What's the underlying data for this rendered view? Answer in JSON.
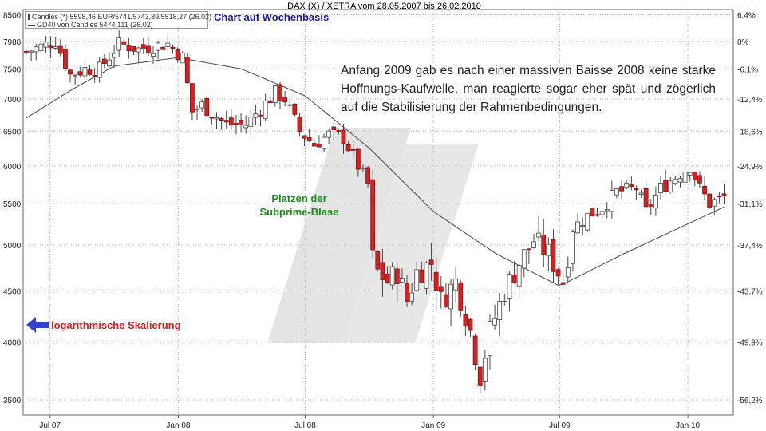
{
  "title": ".DAX (X) / XETRA vom 28.05.2007 bis 26.02.2010",
  "legend": {
    "candles": "Candles (*) 5598,46 EUR/5741/5743,89/5518,27 (26.02)",
    "gd40": "GD40 von Candles 5474,111 (26.02)"
  },
  "note": "Chart auf Wochenbasis",
  "annotation": "Anfang 2009 gab es nach einer massiven Baisse 2008 keine starke Hoffnungs-Kaufwelle, man reagierte sogar eher spät und zögerlich auf die Stabilisierung der Rahmenbedingungen.",
  "bubble": {
    "line1": "Platzen der",
    "line2": "Subprime-Blase"
  },
  "log_label": "logarithmische Skalierung",
  "colors": {
    "up": "#ffffff",
    "down": "#d42222",
    "wick": "#444444",
    "gd40": "#444444",
    "bubble": "#1a8a1a",
    "arrow": "#3344cc",
    "watermark": "#e4e4e4"
  },
  "chart_data": {
    "type": "candlestick",
    "scale": "log",
    "ylim": [
      3380,
      8600
    ],
    "xlim": [
      "2007-05-28",
      "2010-02-26"
    ],
    "left_ticks": [
      {
        "value": 3500,
        "label": "3500"
      },
      {
        "value": 4000,
        "label": "4000"
      },
      {
        "value": 4500,
        "label": "4500"
      },
      {
        "value": 5000,
        "label": "5000"
      },
      {
        "value": 5500,
        "label": "5500"
      },
      {
        "value": 6000,
        "label": "6000"
      },
      {
        "value": 6500,
        "label": "6500"
      },
      {
        "value": 7000,
        "label": "7000"
      },
      {
        "value": 7500,
        "label": "7500"
      },
      {
        "value": 7988,
        "label": "7988"
      },
      {
        "value": 8500,
        "label": "8500"
      }
    ],
    "right_ticks": [
      {
        "value": 8500,
        "label": "6,4%"
      },
      {
        "value": 7988,
        "label": "0%"
      },
      {
        "value": 7500,
        "label": "-6,1%"
      },
      {
        "value": 7000,
        "label": "-12,4%"
      },
      {
        "value": 6500,
        "label": "-18,6%"
      },
      {
        "value": 6000,
        "label": "-24,9%"
      },
      {
        "value": 5500,
        "label": "-31,1%"
      },
      {
        "value": 5000,
        "label": "-37,4%"
      },
      {
        "value": 4500,
        "label": "-43,7%"
      },
      {
        "value": 4000,
        "label": "-49,9%"
      },
      {
        "value": 3500,
        "label": "-56,2%"
      }
    ],
    "x_ticks": [
      {
        "date": "2007-07-01",
        "label": "Jul 07"
      },
      {
        "date": "2008-01-01",
        "label": "Jan 08"
      },
      {
        "date": "2008-07-01",
        "label": "Jul 08"
      },
      {
        "date": "2009-01-01",
        "label": "Jan 09"
      },
      {
        "date": "2009-07-01",
        "label": "Jul 09"
      },
      {
        "date": "2010-01-01",
        "label": "Jan 10"
      }
    ],
    "close_anchors": [
      [
        "2007-05-28",
        7800
      ],
      [
        "2007-06-18",
        7900
      ],
      [
        "2007-07-09",
        8000
      ],
      [
        "2007-07-30",
        7400
      ],
      [
        "2007-08-20",
        7500
      ],
      [
        "2007-09-10",
        7500
      ],
      [
        "2007-10-08",
        7950
      ],
      [
        "2007-11-05",
        7850
      ],
      [
        "2007-11-26",
        7900
      ],
      [
        "2007-12-17",
        7950
      ],
      [
        "2008-01-07",
        7700
      ],
      [
        "2008-01-21",
        6800
      ],
      [
        "2008-02-04",
        6900
      ],
      [
        "2008-03-10",
        6600
      ],
      [
        "2008-04-07",
        6600
      ],
      [
        "2008-05-19",
        7100
      ],
      [
        "2008-06-02",
        7000
      ],
      [
        "2008-06-23",
        6500
      ],
      [
        "2008-07-14",
        6300
      ],
      [
        "2008-08-04",
        6450
      ],
      [
        "2008-08-25",
        6400
      ],
      [
        "2008-09-15",
        6000
      ],
      [
        "2008-09-29",
        5750
      ],
      [
        "2008-10-06",
        4850
      ],
      [
        "2008-10-13",
        4700
      ],
      [
        "2008-10-27",
        4600
      ],
      [
        "2008-11-10",
        4700
      ],
      [
        "2008-11-24",
        4400
      ],
      [
        "2008-12-08",
        4700
      ],
      [
        "2008-12-29",
        4800
      ],
      [
        "2009-01-12",
        4400
      ],
      [
        "2009-02-02",
        4600
      ],
      [
        "2009-02-23",
        4100
      ],
      [
        "2009-03-09",
        3700
      ],
      [
        "2009-03-23",
        4100
      ],
      [
        "2009-04-13",
        4500
      ],
      [
        "2009-05-04",
        4800
      ],
      [
        "2009-05-25",
        5050
      ],
      [
        "2009-06-15",
        4900
      ],
      [
        "2009-07-06",
        4600
      ],
      [
        "2009-07-20",
        5200
      ],
      [
        "2009-08-10",
        5350
      ],
      [
        "2009-08-31",
        5450
      ],
      [
        "2009-09-21",
        5650
      ],
      [
        "2009-10-19",
        5700
      ],
      [
        "2009-11-02",
        5400
      ],
      [
        "2009-11-23",
        5700
      ],
      [
        "2009-12-14",
        5850
      ],
      [
        "2010-01-04",
        6000
      ],
      [
        "2010-01-18",
        5700
      ],
      [
        "2010-02-01",
        5500
      ],
      [
        "2010-02-26",
        5598
      ]
    ],
    "gd40_anchors": [
      [
        "2007-05-28",
        6700
      ],
      [
        "2007-08-01",
        7150
      ],
      [
        "2007-10-01",
        7550
      ],
      [
        "2008-01-01",
        7700
      ],
      [
        "2008-04-01",
        7500
      ],
      [
        "2008-07-01",
        7050
      ],
      [
        "2008-10-01",
        6250
      ],
      [
        "2009-01-01",
        5400
      ],
      [
        "2009-04-01",
        4900
      ],
      [
        "2009-07-01",
        4550
      ],
      [
        "2009-10-01",
        4900
      ],
      [
        "2010-01-01",
        5250
      ],
      [
        "2010-02-26",
        5474
      ]
    ]
  }
}
